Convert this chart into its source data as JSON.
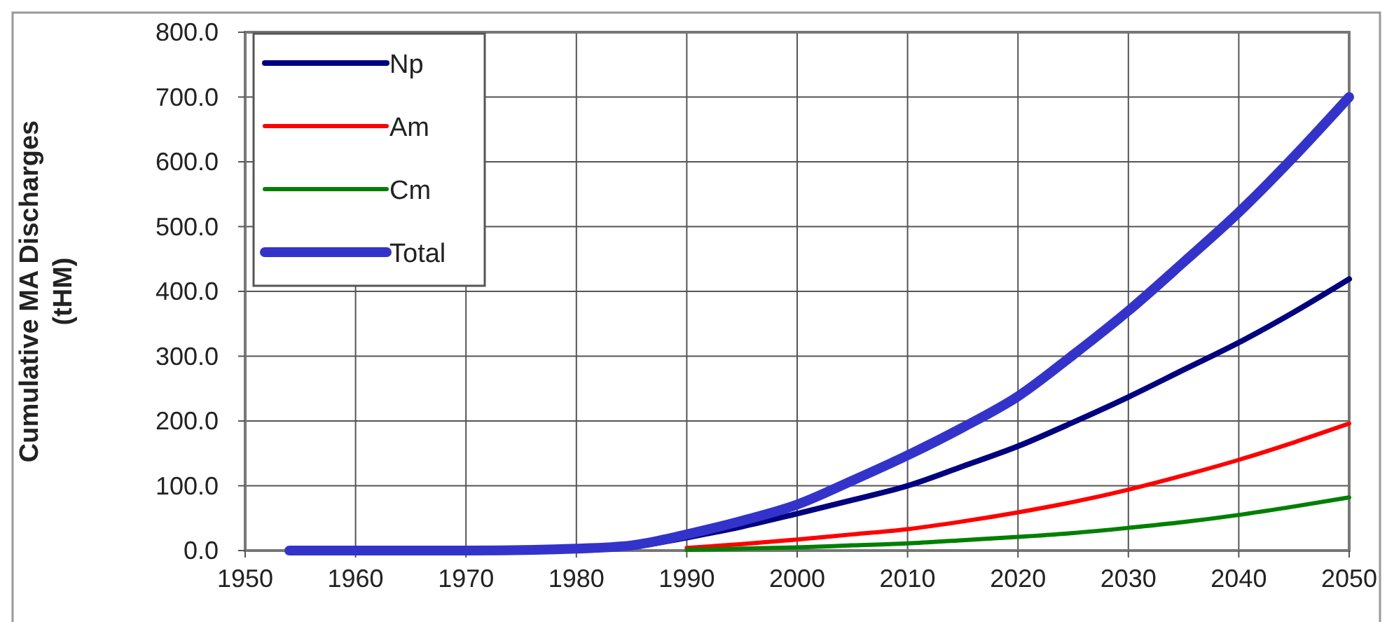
{
  "chart_data": {
    "type": "line",
    "ylabel": "Cumulative MA Discharges (tHM)",
    "xlim": [
      1950,
      2050
    ],
    "xticks": [
      1950,
      1960,
      1970,
      1980,
      1990,
      2000,
      2010,
      2020,
      2030,
      2040,
      2050
    ],
    "ylim": [
      0,
      800
    ],
    "yticks": [
      {
        "value": 0,
        "label": "0.0"
      },
      {
        "value": 100,
        "label": "100.0"
      },
      {
        "value": 200,
        "label": "200.0"
      },
      {
        "value": 300,
        "label": "300.0"
      },
      {
        "value": 400,
        "label": "400.0"
      },
      {
        "value": 500,
        "label": "500.0"
      },
      {
        "value": 600,
        "label": "600.0"
      },
      {
        "value": 700,
        "label": "700.0"
      },
      {
        "value": 800,
        "label": "800.0"
      }
    ],
    "grid": true,
    "legend": "top left",
    "marker": "none",
    "x": [
      1954,
      1970,
      1980,
      1985,
      1990,
      1995,
      2000,
      2005,
      2010,
      2015,
      2020,
      2025,
      2030,
      2035,
      2040,
      2045,
      2050
    ],
    "series": [
      {
        "name": "Np",
        "color": "#000080",
        "values": [
          null,
          null,
          null,
          5,
          20,
          37,
          57,
          78,
          100,
          130,
          161,
          198,
          237,
          279,
          321,
          368,
          419
        ]
      },
      {
        "name": "Am",
        "color": "#ff0000",
        "values": [
          null,
          null,
          null,
          null,
          4,
          10,
          17,
          25,
          33,
          45,
          59,
          75,
          94,
          116,
          140,
          167,
          196
        ]
      },
      {
        "name": "Cm",
        "color": "#008000",
        "values": [
          null,
          null,
          null,
          null,
          1,
          3,
          5,
          8,
          11,
          16,
          21,
          27,
          35,
          44,
          55,
          68,
          82
        ]
      },
      {
        "name": "Total",
        "color": "#3333cc",
        "values": [
          0,
          0,
          3,
          8,
          25,
          46,
          71,
          108,
          147,
          190,
          238,
          302,
          370,
          445,
          522,
          608,
          700
        ]
      }
    ]
  }
}
